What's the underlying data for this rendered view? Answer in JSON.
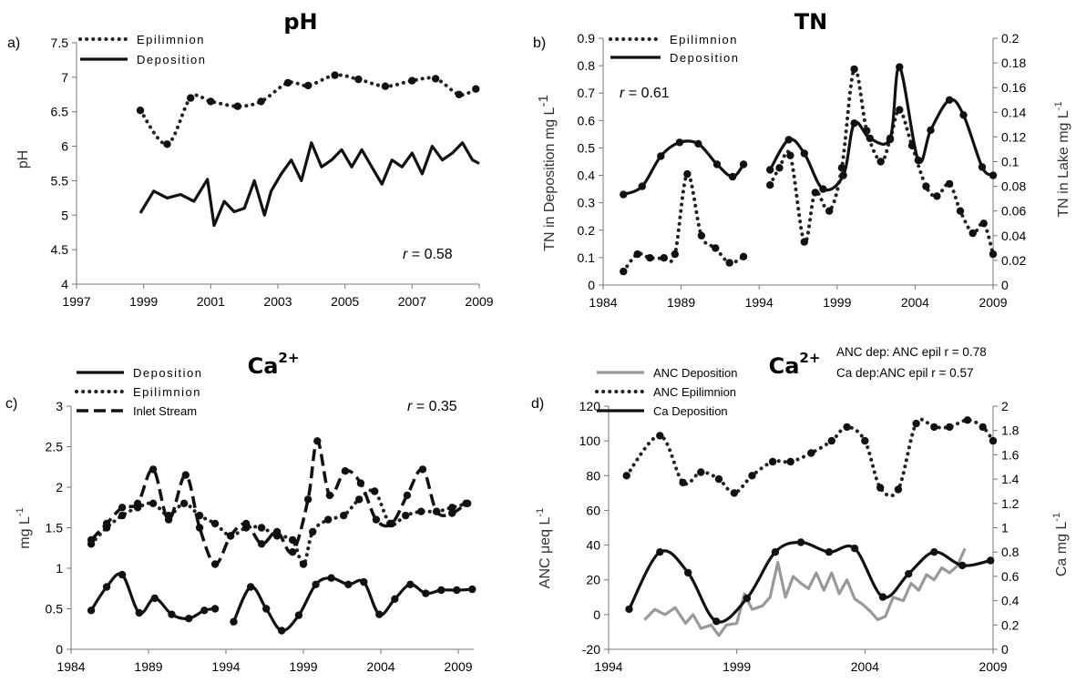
{
  "chart_data": [
    {
      "id": "a",
      "type": "line",
      "panel_label": "a)",
      "title": "pH",
      "ylabel": "pH",
      "xlim": [
        1997,
        2009
      ],
      "ylim": [
        4,
        7.5
      ],
      "xticks": [
        "1997",
        "1999",
        "2001",
        "2003",
        "2005",
        "2007",
        "2009"
      ],
      "yticks": [
        "4",
        "4.5",
        "5",
        "5.5",
        "6",
        "6.5",
        "7",
        "7.5"
      ],
      "legend": {
        "placement": "top-left",
        "entries": [
          "Epilimnion",
          "Deposition"
        ]
      },
      "annotation": {
        "italic": "r",
        "text": " = 0.58"
      },
      "series": [
        {
          "name": "Epilimnion",
          "style": "dotted",
          "axis": "left",
          "color": "#222222",
          "x": [
            1998.9,
            1999.7,
            2000.4,
            2001.0,
            2001.8,
            2002.5,
            2003.3,
            2003.9,
            2004.7,
            2005.4,
            2006.2,
            2007.0,
            2007.7,
            2008.4,
            2008.9
          ],
          "y": [
            6.52,
            6.03,
            6.7,
            6.65,
            6.58,
            6.65,
            6.92,
            6.88,
            7.03,
            6.97,
            6.87,
            6.95,
            6.98,
            6.75,
            6.83
          ]
        },
        {
          "name": "Deposition",
          "style": "solid",
          "axis": "left",
          "color": "#111111",
          "x": [
            1998.9,
            1999.3,
            1999.7,
            2000.1,
            2000.5,
            2000.9,
            2001.1,
            2001.4,
            2001.7,
            2002.0,
            2002.3,
            2002.6,
            2002.8,
            2003.1,
            2003.4,
            2003.7,
            2004.0,
            2004.3,
            2004.6,
            2004.9,
            2005.2,
            2005.5,
            2005.8,
            2006.1,
            2006.4,
            2006.7,
            2007.0,
            2007.3,
            2007.6,
            2007.9,
            2008.2,
            2008.5,
            2008.8,
            2009.0
          ],
          "y": [
            5.03,
            5.35,
            5.25,
            5.3,
            5.2,
            5.52,
            4.85,
            5.2,
            5.05,
            5.1,
            5.5,
            5.0,
            5.35,
            5.6,
            5.8,
            5.5,
            6.05,
            5.7,
            5.8,
            5.95,
            5.7,
            5.95,
            5.7,
            5.45,
            5.8,
            5.7,
            5.9,
            5.6,
            6.0,
            5.8,
            5.9,
            6.05,
            5.8,
            5.75
          ]
        }
      ]
    },
    {
      "id": "b",
      "type": "line",
      "panel_label": "b)",
      "title": "TN",
      "ylabel": "TN in Deposition mg L",
      "ylabel_sup": "-1",
      "y2label": "TN in Lake mg L",
      "y2label_sup": "-1",
      "xlim": [
        1984,
        2009
      ],
      "ylim": [
        0,
        0.9
      ],
      "y2lim": [
        0,
        0.2
      ],
      "xticks": [
        "1984",
        "1989",
        "1994",
        "1999",
        "2004",
        "2009"
      ],
      "yticks": [
        "0",
        "0.1",
        "0.2",
        "0.3",
        "0.4",
        "0.5",
        "0.6",
        "0.7",
        "0.8",
        "0.9"
      ],
      "y2ticks": [
        "0",
        "0.02",
        "0.04",
        "0.06",
        "0.08",
        "0.1",
        "0.12",
        "0.14",
        "0.16",
        "0.18",
        "0.2"
      ],
      "legend": {
        "placement": "top-center",
        "entries": [
          "Epilimnion",
          "Deposition"
        ]
      },
      "annotation": {
        "italic": "r",
        "text": " = 0.61"
      },
      "series": [
        {
          "name": "Epilimnion",
          "style": "dotted",
          "axis": "right",
          "color": "#222222",
          "segments": [
            {
              "x": [
                1985.3,
                1986.2,
                1987.0,
                1987.9,
                1988.6,
                1989.4,
                1990.3,
                1991.2,
                1992.1,
                1993.0
              ],
              "y": [
                0.011,
                0.025,
                0.022,
                0.022,
                0.025,
                0.09,
                0.04,
                0.03,
                0.018,
                0.023
              ]
            },
            {
              "x": [
                1994.7,
                1995.3,
                1996.0,
                1996.9,
                1997.6,
                1998.5,
                1999.3,
                2000.1,
                2000.9,
                2001.8,
                2002.4,
                2003.0,
                2003.8,
                2004.7,
                2005.4,
                2006.2,
                2006.9,
                2007.7,
                2008.4,
                2009.0
              ],
              "y": [
                0.081,
                0.095,
                0.105,
                0.035,
                0.075,
                0.06,
                0.095,
                0.175,
                0.125,
                0.1,
                0.118,
                0.142,
                0.113,
                0.08,
                0.072,
                0.082,
                0.06,
                0.042,
                0.05,
                0.025
              ]
            }
          ]
        },
        {
          "name": "Deposition",
          "style": "solid",
          "axis": "left",
          "color": "#111111",
          "segments": [
            {
              "x": [
                1985.3,
                1986.5,
                1987.7,
                1988.9,
                1990.1,
                1991.3,
                1992.3,
                1993.0
              ],
              "y": [
                0.33,
                0.36,
                0.47,
                0.52,
                0.515,
                0.44,
                0.395,
                0.44
              ]
            },
            {
              "x": [
                1994.7,
                1995.9,
                1996.9,
                1998.1,
                1999.4,
                2000.1,
                2001.1,
                2002.4,
                2003.0,
                2004.2,
                2005.0,
                2006.2,
                2007.1,
                2008.3,
                2009.0
              ],
              "y": [
                0.42,
                0.53,
                0.48,
                0.35,
                0.4,
                0.59,
                0.535,
                0.535,
                0.795,
                0.455,
                0.565,
                0.675,
                0.62,
                0.43,
                0.4
              ]
            }
          ]
        }
      ]
    },
    {
      "id": "c",
      "type": "line",
      "panel_label": "c)",
      "title": "Ca",
      "title_sup": "2+",
      "ylabel": "mg L",
      "ylabel_sup": "-1",
      "xlim": [
        1984,
        2010
      ],
      "ylim": [
        0,
        3
      ],
      "xticks": [
        "1984",
        "1989",
        "1994",
        "1999",
        "2004",
        "2009"
      ],
      "yticks": [
        "0",
        "0.5",
        "1",
        "1.5",
        "2",
        "2.5",
        "3"
      ],
      "legend": {
        "placement": "top-left",
        "entries": [
          "Deposition",
          "Epilimnion",
          "Inlet Stream"
        ]
      },
      "annotation": {
        "italic": "r",
        "text": " = 0.35"
      },
      "series": [
        {
          "name": "Deposition",
          "style": "solid",
          "axis": "left",
          "color": "#111111",
          "segments": [
            {
              "x": [
                1985.3,
                1986.3,
                1987.3,
                1988.4,
                1989.4,
                1990.5,
                1991.6,
                1992.6,
                1993.3
              ],
              "y": [
                0.48,
                0.77,
                0.92,
                0.45,
                0.63,
                0.43,
                0.38,
                0.48,
                0.5
              ]
            },
            {
              "x": [
                1994.5,
                1995.6,
                1996.6,
                1997.6,
                1998.7,
                1999.8,
                2000.8,
                2001.9,
                2002.9,
                2003.9,
                2004.9,
                2005.9,
                2006.9,
                2007.9,
                2008.9,
                2009.9
              ],
              "y": [
                0.34,
                0.77,
                0.5,
                0.23,
                0.42,
                0.8,
                0.88,
                0.8,
                0.83,
                0.43,
                0.62,
                0.8,
                0.69,
                0.73,
                0.73,
                0.74
              ]
            }
          ]
        },
        {
          "name": "Epilimnion",
          "style": "dotted",
          "axis": "left",
          "color": "#222222",
          "x": [
            1985.3,
            1986.3,
            1987.3,
            1988.3,
            1989.3,
            1990.3,
            1991.3,
            1992.3,
            1993.3,
            1994.3,
            1995.3,
            1996.3,
            1997.3,
            1998.3,
            1999.0,
            1999.6,
            2000.6,
            2001.6,
            2002.6,
            2003.6,
            2004.6,
            2005.6,
            2006.6,
            2007.6,
            2008.6,
            2009.6
          ],
          "y": [
            1.3,
            1.5,
            1.65,
            1.75,
            1.8,
            1.65,
            1.8,
            1.65,
            1.55,
            1.4,
            1.5,
            1.5,
            1.4,
            1.35,
            1.05,
            1.45,
            1.6,
            1.65,
            1.85,
            1.95,
            1.55,
            1.65,
            1.7,
            1.7,
            1.75,
            1.8
          ]
        },
        {
          "name": "Inlet Stream",
          "style": "dashed",
          "axis": "left",
          "color": "#111111",
          "x": [
            1985.3,
            1986.3,
            1987.3,
            1988.3,
            1989.3,
            1990.3,
            1991.4,
            1992.3,
            1993.3,
            1994.3,
            1995.3,
            1996.3,
            1997.3,
            1998.3,
            1999.3,
            1999.9,
            2000.7,
            2001.7,
            2002.7,
            2003.7,
            2004.7,
            2005.7,
            2006.7,
            2007.6,
            2008.6,
            2009.5
          ],
          "y": [
            1.35,
            1.55,
            1.75,
            1.8,
            2.22,
            1.6,
            2.15,
            1.5,
            1.05,
            1.4,
            1.55,
            1.3,
            1.45,
            1.2,
            1.85,
            2.57,
            1.9,
            2.2,
            2.05,
            1.6,
            1.55,
            1.9,
            2.22,
            1.7,
            1.68,
            1.8
          ]
        }
      ]
    },
    {
      "id": "d",
      "type": "line",
      "panel_label": "d)",
      "title": "Ca",
      "title_sup": "2+",
      "ylabel": "ANC μeq L",
      "ylabel_sup": "-1",
      "y2label": "Ca mg L",
      "y2label_sup": "-1",
      "xlim": [
        1994,
        2009
      ],
      "ylim": [
        -20,
        120
      ],
      "y2lim": [
        0,
        2
      ],
      "xticks": [
        "1994",
        "1999",
        "2004",
        "2009"
      ],
      "yticks": [
        "-20",
        "0",
        "20",
        "40",
        "60",
        "80",
        "100",
        "120"
      ],
      "y2ticks": [
        "0",
        "0.2",
        "0.4",
        "0.6",
        "0.8",
        "1",
        "1.2",
        "1.4",
        "1.6",
        "1.8",
        "2"
      ],
      "legend": {
        "placement": "top-left",
        "entries": [
          "ANC Deposition",
          "ANC Epilimnion",
          "Ca Deposition"
        ]
      },
      "annotation_lines": [
        "ANC dep: ANC epil r = 0.78",
        "Ca dep:ANC epil r = 0.57"
      ],
      "series": [
        {
          "name": "ANC Deposition",
          "style": "solid",
          "axis": "left",
          "color": "#999999",
          "x": [
            1995.4,
            1995.8,
            1996.2,
            1996.6,
            1997.0,
            1997.3,
            1997.6,
            1998.0,
            1998.3,
            1998.6,
            1999.0,
            1999.3,
            1999.6,
            2000.0,
            2000.3,
            2000.6,
            2000.9,
            2001.2,
            2001.5,
            2001.8,
            2002.1,
            2002.4,
            2002.7,
            2003.0,
            2003.3,
            2003.6,
            2003.9,
            2004.2,
            2004.5,
            2004.8,
            2005.1,
            2005.5,
            2005.8,
            2006.1,
            2006.4,
            2006.7,
            2007.0,
            2007.3,
            2007.6,
            2007.9
          ],
          "y": [
            -3,
            3,
            0,
            4,
            -5,
            0,
            -8,
            -6,
            -12,
            -6,
            -5,
            12,
            3,
            5,
            10,
            30,
            10,
            22,
            18,
            15,
            24,
            14,
            24,
            12,
            20,
            9,
            6,
            2,
            -3,
            -1,
            10,
            8,
            18,
            14,
            23,
            20,
            27,
            24,
            28,
            38
          ]
        },
        {
          "name": "ANC Epilimnion",
          "style": "dotted",
          "axis": "left",
          "color": "#222222",
          "x": [
            1994.7,
            1996.0,
            1996.9,
            1997.6,
            1998.3,
            1998.9,
            1999.6,
            2000.4,
            2001.1,
            2001.9,
            2002.7,
            2003.3,
            2004.0,
            2004.6,
            2005.3,
            2006.0,
            2006.7,
            2007.3,
            2008.0,
            2008.6,
            2009.0
          ],
          "y": [
            80,
            103,
            76,
            82,
            78,
            70,
            80,
            88,
            88,
            93,
            100,
            108,
            100,
            73,
            72,
            110,
            108,
            108,
            112,
            108,
            100
          ]
        },
        {
          "name": "Ca Deposition",
          "style": "solid",
          "axis": "right",
          "color": "#111111",
          "x": [
            1994.8,
            1996.0,
            1997.1,
            1998.2,
            1999.4,
            2000.5,
            2001.5,
            2002.6,
            2003.6,
            2004.7,
            2005.7,
            2006.7,
            2007.8,
            2008.9
          ],
          "y": [
            0.33,
            0.8,
            0.63,
            0.23,
            0.42,
            0.8,
            0.88,
            0.8,
            0.83,
            0.43,
            0.62,
            0.8,
            0.69,
            0.73
          ]
        }
      ]
    }
  ]
}
